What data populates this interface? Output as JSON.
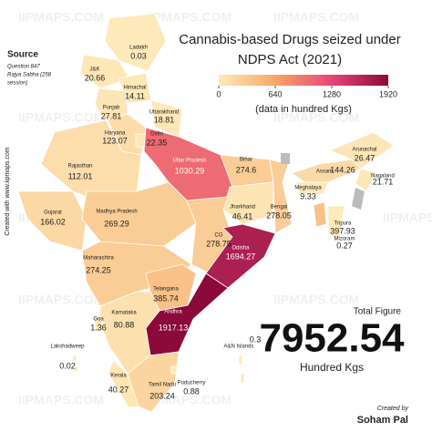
{
  "title": "Cannabis-based Drugs seized under",
  "title_line2": "NDPS Act (2021)",
  "legend": {
    "ticks": [
      0,
      640,
      1280,
      1920
    ],
    "colors": [
      "#fde9b9",
      "#f6a768",
      "#e8457a",
      "#8b0a3a"
    ],
    "unit": "(data in hundred Kgs)"
  },
  "source": {
    "heading": "Source",
    "line1": "Question 847",
    "line2": "Rajya Sabha (258",
    "line3": "session)"
  },
  "total": {
    "label": "Total Figure",
    "value": "7952.54",
    "unit": "Hundred Kgs"
  },
  "credit": {
    "label": "Created by",
    "name": "Soham Pal",
    "site": "Created with www.iipmaps.com"
  },
  "watermark": "IIPMAPS.COM",
  "states": [
    {
      "name": "Ladakh",
      "value": 0.03
    },
    {
      "name": "J&K",
      "value": 20.66
    },
    {
      "name": "Himachal",
      "value": 14.11
    },
    {
      "name": "Punjab",
      "value": 27.81
    },
    {
      "name": "Uttarakhand",
      "value": 18.81
    },
    {
      "name": "Haryana",
      "value": 123.07
    },
    {
      "name": "Delhi",
      "value": 22.35
    },
    {
      "name": "Uttar Pradesh",
      "value": 1030.29
    },
    {
      "name": "Rajasthan",
      "value": 112.01
    },
    {
      "name": "Gujarat",
      "value": 166.02
    },
    {
      "name": "Madhya Pradesh",
      "value": 269.29
    },
    {
      "name": "Bihar",
      "value": 274.6
    },
    {
      "name": "Jharkhand",
      "value": 46.41
    },
    {
      "name": "Bengal",
      "value": 278.05
    },
    {
      "name": "CG",
      "value": 278.75
    },
    {
      "name": "Maharashtra",
      "value": 274.25
    },
    {
      "name": "Odisha",
      "value": 1694.27
    },
    {
      "name": "Telangana",
      "value": 385.74
    },
    {
      "name": "Andhra",
      "value": 1917.13
    },
    {
      "name": "Karnataka",
      "value": 80.88
    },
    {
      "name": "Goa",
      "value": 1.36
    },
    {
      "name": "Kerala",
      "value": 40.27
    },
    {
      "name": "Tamil Nadu",
      "value": 203.24
    },
    {
      "name": "Puducherry",
      "value": 0.88
    },
    {
      "name": "Arunachal",
      "value": 26.47
    },
    {
      "name": "Assam",
      "value": 144.26
    },
    {
      "name": "Meghalaya",
      "value": 9.33
    },
    {
      "name": "Nagaland",
      "value": 21.71
    },
    {
      "name": "Tripura",
      "value": 397.93
    },
    {
      "name": "Mizoram",
      "value": 0.27
    },
    {
      "name": "A&N Islands",
      "value": 0.3
    },
    {
      "name": "Lakshadweep",
      "value": 0.02
    }
  ]
}
